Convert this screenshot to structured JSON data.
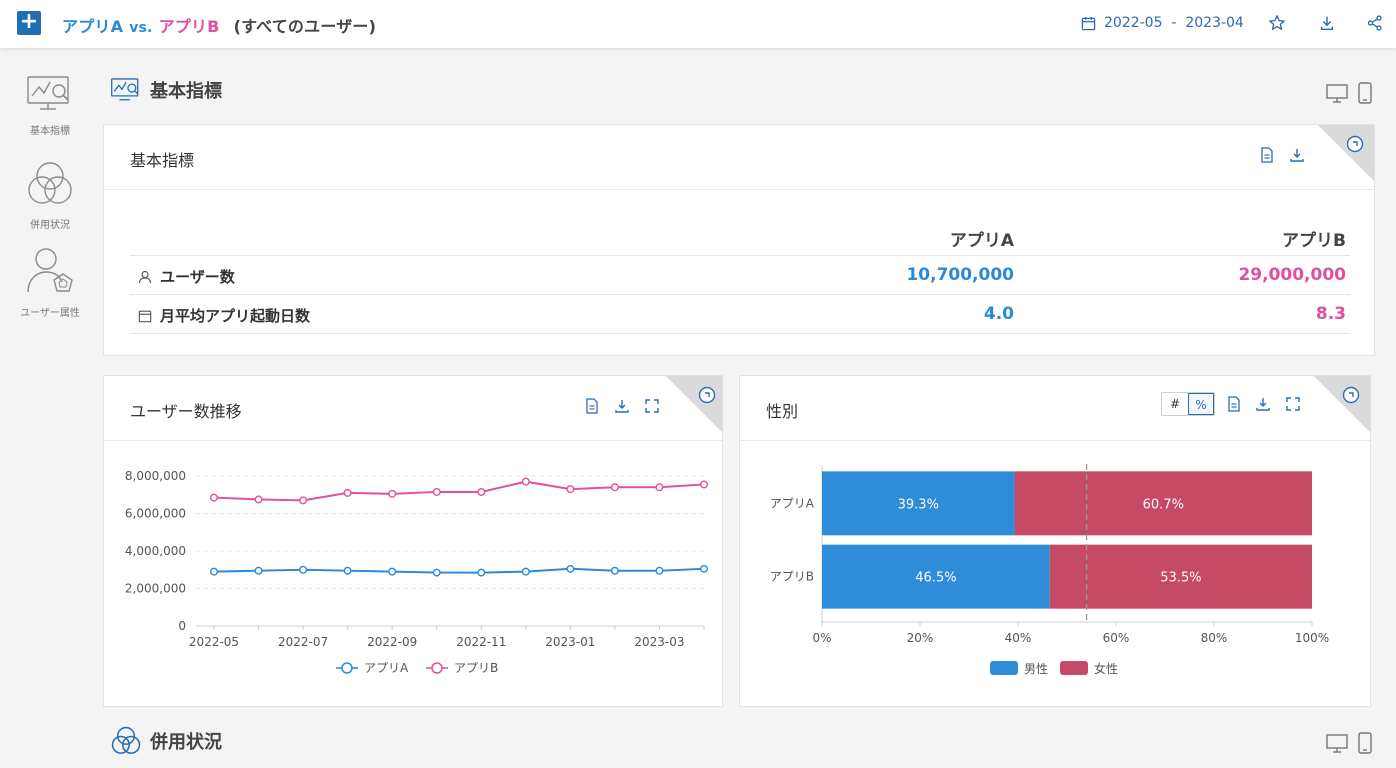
{
  "header": {
    "app_a": "アプリA",
    "vs": "vs.",
    "app_b": "アプリB",
    "scope": "(すべてのユーザー)",
    "date_range": "2022-05  -  2023-04"
  },
  "sidebar": {
    "items": [
      {
        "label": "基本指標",
        "icon": "monitor-chart-icon"
      },
      {
        "label": "併用状況",
        "icon": "venn-icon"
      },
      {
        "label": "ユーザー属性",
        "icon": "user-attribute-icon"
      }
    ]
  },
  "sections": {
    "basic": "基本指標",
    "overlap": "併用状況"
  },
  "kpi": {
    "title": "基本指標",
    "col_a": "アプリA",
    "col_b": "アプリB",
    "rows": [
      {
        "label": "ユーザー数",
        "a": "10,700,000",
        "b": "29,000,000"
      },
      {
        "label": "月平均アプリ起動日数",
        "a": "4.0",
        "b": "8.3"
      }
    ]
  },
  "colors": {
    "app_a": "#2b8ad6",
    "app_b": "#e0509f",
    "male": "#2f8cd8",
    "female": "#c44a66"
  },
  "trend": {
    "title": "ユーザー数推移"
  },
  "gender": {
    "title": "性別",
    "toggle_count": "#",
    "toggle_pct": "%"
  },
  "chart_data": [
    {
      "type": "line",
      "title": "ユーザー数推移",
      "x": [
        "2022-05",
        "2022-06",
        "2022-07",
        "2022-08",
        "2022-09",
        "2022-10",
        "2022-11",
        "2022-12",
        "2023-01",
        "2023-02",
        "2023-03",
        "2023-04"
      ],
      "x_tick_labels": [
        "2022-05",
        "2022-07",
        "2022-09",
        "2022-11",
        "2023-01",
        "2023-03"
      ],
      "y_tick_labels": [
        "0",
        "2,000,000",
        "4,000,000",
        "6,000,000",
        "8,000,000"
      ],
      "ylim": [
        0,
        8000000
      ],
      "grid": true,
      "legend": "bottom",
      "series": [
        {
          "name": "アプリA",
          "values": [
            2900000,
            2950000,
            3000000,
            2950000,
            2900000,
            2850000,
            2850000,
            2900000,
            3050000,
            2950000,
            2950000,
            3050000
          ]
        },
        {
          "name": "アプリB",
          "values": [
            6850000,
            6750000,
            6700000,
            7100000,
            7050000,
            7150000,
            7150000,
            7700000,
            7300000,
            7400000,
            7400000,
            7550000
          ]
        }
      ]
    },
    {
      "type": "bar",
      "orientation": "horizontal",
      "stacked": true,
      "title": "性別",
      "categories": [
        "アプリA",
        "アプリB"
      ],
      "x_tick_labels": [
        "0%",
        "20%",
        "40%",
        "60%",
        "80%",
        "100%"
      ],
      "xlim": [
        0,
        100
      ],
      "reference_line": 54,
      "legend": "bottom",
      "series": [
        {
          "name": "男性",
          "values": [
            39.3,
            46.5
          ],
          "labels": [
            "39.3%",
            "46.5%"
          ]
        },
        {
          "name": "女性",
          "values": [
            60.7,
            53.5
          ],
          "labels": [
            "60.7%",
            "53.5%"
          ]
        }
      ]
    }
  ]
}
